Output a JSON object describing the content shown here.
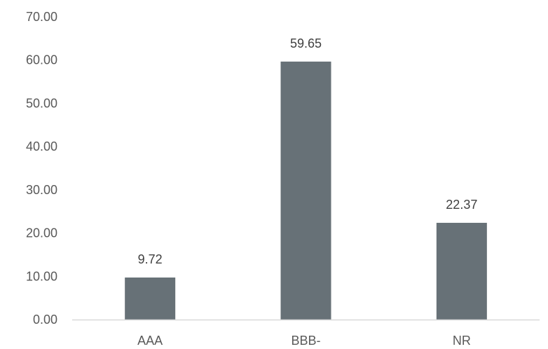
{
  "chart_data": {
    "type": "bar",
    "title": "",
    "xlabel": "",
    "ylabel": "",
    "categories": [
      "AAA",
      "BBB-",
      "NR"
    ],
    "values": [
      9.72,
      59.65,
      22.37
    ],
    "value_labels": [
      "9.72",
      "59.65",
      "22.37"
    ],
    "ylim": [
      0,
      70
    ],
    "y_ticks": [
      "0.00",
      "10.00",
      "20.00",
      "30.00",
      "40.00",
      "50.00",
      "60.00",
      "70.00"
    ],
    "grid": false,
    "legend": "none",
    "bar_color": "#677177",
    "axis_color": "#d9d9d9"
  }
}
